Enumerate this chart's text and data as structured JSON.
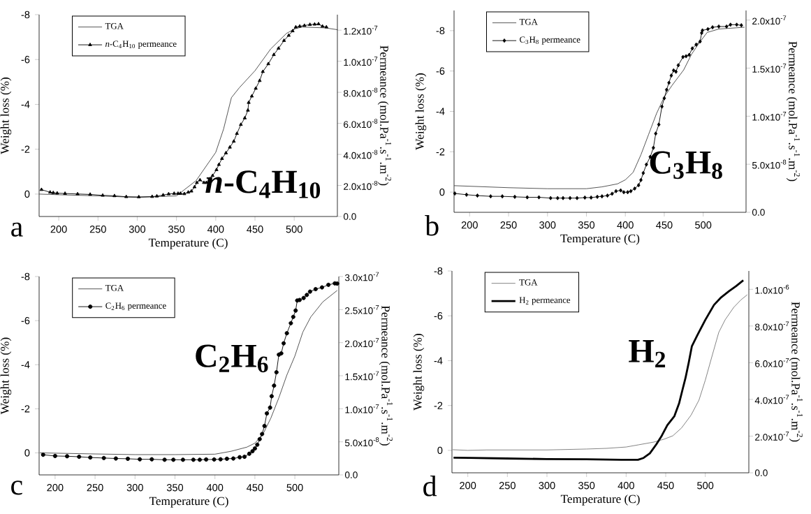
{
  "chart_data": [
    {
      "type": "line",
      "xlabel": "Temperature (C)",
      "ylabel": "Weight loss (%)",
      "y2label": "Permeance (mol.Pa$^{-1}$.s$^{-1}$.m$^{-2}$)",
      "legend": "top left",
      "annotations": [
        "a",
        "*n*-C$_{4}$H$_{10}$"
      ],
      "xlim": [
        175,
        555
      ],
      "xticks": [
        200,
        250,
        300,
        350,
        400,
        450,
        500
      ],
      "ylim": [
        1,
        -8
      ],
      "yticks": [
        0,
        -2,
        -4,
        -6,
        -8
      ],
      "y2lim": [
        0,
        1.3e-07
      ],
      "y2ticks": [
        {
          "value": 0,
          "label": "0.0"
        },
        {
          "value": 2e-08,
          "label": "2.0x10$^{-8}$"
        },
        {
          "value": 4e-08,
          "label": "4.0x10$^{-8}$"
        },
        {
          "value": 6e-08,
          "label": "6.0x10$^{-8}$"
        },
        {
          "value": 8e-08,
          "label": "8.0x10$^{-8}$"
        },
        {
          "value": 1e-07,
          "label": "1.0x10$^{-7}$"
        },
        {
          "value": 1.2e-07,
          "label": "1.2x10$^{-7}$"
        }
      ],
      "series": [
        {
          "name": "TGA",
          "color": "#444444",
          "marker": "none",
          "x": [
            175,
            200,
            250,
            300,
            350,
            375,
            400,
            410,
            420,
            430,
            450,
            470,
            490,
            500,
            510,
            540,
            555
          ],
          "values": [
            0,
            0.03,
            0.08,
            0.15,
            0.08,
            -0.6,
            -1.86,
            -2.9,
            -4.3,
            -4.74,
            -5.5,
            -6.47,
            -7.16,
            -7.36,
            -7.45,
            -7.41,
            -7.33
          ]
        },
        {
          "name": "*n*-C$_{4}$H$_{10}$ permeance",
          "color": "#000000",
          "marker": "triangle",
          "axis": "y2",
          "x": [
            178,
            189,
            193,
            198,
            208,
            224,
            240,
            256,
            271,
            286,
            302,
            319,
            325,
            333,
            340,
            347,
            352,
            355,
            360,
            365,
            369,
            373,
            376,
            380,
            385,
            388,
            393,
            396,
            401,
            404,
            408,
            413,
            418,
            423,
            427,
            432,
            437,
            441,
            442,
            446,
            451,
            456,
            460,
            467,
            474,
            480,
            487,
            493,
            498,
            502,
            507,
            513,
            520,
            526,
            531,
            536,
            541
          ],
          "values": [
            1.73e-08,
            1.56e-08,
            1.53e-08,
            1.5e-08,
            1.48e-08,
            1.45e-08,
            1.42e-08,
            1.36e-08,
            1.33e-08,
            1.27e-08,
            1.26e-08,
            1.28e-08,
            1.31e-08,
            1.38e-08,
            1.45e-08,
            1.48e-08,
            1.48e-08,
            1.48e-08,
            1.46e-08,
            1.56e-08,
            1.63e-08,
            1.9e-08,
            2.18e-08,
            2.35e-08,
            2.18e-08,
            2.18e-08,
            2.43e-08,
            2.63e-08,
            3.01e-08,
            3.34e-08,
            3.73e-08,
            4.09e-08,
            4.46e-08,
            4.84e-08,
            5.34e-08,
            5.92e-08,
            6.34e-08,
            6.84e-08,
            7.34e-08,
            7.75e-08,
            8.25e-08,
            8.75e-08,
            9.33e-08,
            9.83e-08,
            1.042e-07,
            1.083e-07,
            1.133e-07,
            1.166e-07,
            1.195e-07,
            1.22e-07,
            1.225e-07,
            1.23e-07,
            1.236e-07,
            1.238e-07,
            1.24e-07,
            1.225e-07,
            1.22e-07
          ]
        }
      ]
    },
    {
      "type": "line",
      "xlabel": "Temperature (C)",
      "ylabel": "Weight loss (%)",
      "y2label": "Permeance (mol.Pa$^{-1}$.s$^{-1}$.m$^{-2}$)",
      "legend": "top left",
      "annotations": [
        "b",
        "C$_{3}$H$_{8}$"
      ],
      "xlim": [
        180,
        555
      ],
      "xticks": [
        200,
        250,
        300,
        350,
        400,
        450,
        500
      ],
      "ylim": [
        1,
        -9
      ],
      "yticks": [
        0,
        -2,
        -4,
        -6,
        -8
      ],
      "y2lim": [
        0,
        2.1e-07
      ],
      "y2ticks": [
        {
          "value": 0,
          "label": "0.0"
        },
        {
          "value": 5e-08,
          "label": "5.0x10$^{-8}$"
        },
        {
          "value": 1e-07,
          "label": "1.0x10$^{-7}$"
        },
        {
          "value": 1.5e-07,
          "label": "1.5x10$^{-7}$"
        },
        {
          "value": 2e-07,
          "label": "2.0x10$^{-7}$"
        }
      ],
      "series": [
        {
          "name": "TGA",
          "color": "#444444",
          "marker": "none",
          "x": [
            180,
            250,
            300,
            350,
            370,
            390,
            400,
            410,
            420,
            430,
            440,
            450,
            460,
            475,
            485,
            495,
            505,
            520,
            553
          ],
          "values": [
            -0.32,
            -0.22,
            -0.17,
            -0.17,
            -0.26,
            -0.41,
            -0.61,
            -0.98,
            -1.85,
            -2.87,
            -3.89,
            -4.72,
            -5.29,
            -6.06,
            -6.83,
            -7.4,
            -7.91,
            -8.08,
            -8.17
          ]
        },
        {
          "name": "C$_{3}$H$_{8}$ permeance",
          "color": "#000000",
          "marker": "diamond",
          "axis": "y2",
          "x": [
            181,
            196,
            210,
            227,
            242,
            258,
            274,
            289,
            304,
            313,
            320,
            329,
            338,
            348,
            356,
            364,
            370,
            377,
            383,
            388,
            394,
            398,
            403,
            407,
            412,
            417,
            420,
            423,
            427,
            432,
            436,
            439,
            443,
            447,
            450,
            453,
            456,
            459,
            462,
            465,
            468,
            474,
            478,
            482,
            486,
            491,
            496,
            498,
            499,
            506,
            512,
            520,
            530,
            535,
            543,
            549
          ],
          "values": [
            1.96e-08,
            1.83e-08,
            1.74e-08,
            1.66e-08,
            1.66e-08,
            1.61e-08,
            1.56e-08,
            1.56e-08,
            1.48e-08,
            1.48e-08,
            1.48e-08,
            1.48e-08,
            1.48e-08,
            1.53e-08,
            1.53e-08,
            1.61e-08,
            1.66e-08,
            1.74e-08,
            1.93e-08,
            2.2e-08,
            2.28e-08,
            2.09e-08,
            2.09e-08,
            2.2e-08,
            2.47e-08,
            2.82e-08,
            3.36e-08,
            4.08e-08,
            4.97e-08,
            5.77e-08,
            6.71e-08,
            8.19e-08,
            9.13e-08,
            1.1e-07,
            1.187e-07,
            1.275e-07,
            1.348e-07,
            1.423e-07,
            1.477e-07,
            1.463e-07,
            1.53e-07,
            1.616e-07,
            1.624e-07,
            1.638e-07,
            1.705e-07,
            1.745e-07,
            1.777e-07,
            1.866e-07,
            1.893e-07,
            1.906e-07,
            1.925e-07,
            1.933e-07,
            1.933e-07,
            1.952e-07,
            1.952e-07,
            1.946e-07
          ]
        }
      ]
    },
    {
      "type": "line",
      "xlabel": "Temperature (C)",
      "ylabel": "Weight loss (%)",
      "y2label": "Permeance (mol.Pa$^{-1}$.s$^{-1}$.m$^{-2}$)",
      "legend": "top left",
      "annotations": [
        "c",
        "C$_{2}$H$_{6}$"
      ],
      "xlim": [
        180,
        555
      ],
      "xticks": [
        200,
        250,
        300,
        350,
        400,
        450,
        500
      ],
      "ylim": [
        1,
        -8
      ],
      "yticks": [
        0,
        -2,
        -4,
        -6,
        -8
      ],
      "y2lim": [
        0,
        3e-07
      ],
      "y2ticks": [
        {
          "value": 0,
          "label": "0.0"
        },
        {
          "value": 5e-08,
          "label": "5.0x10$^{-8}$"
        },
        {
          "value": 1e-07,
          "label": "1.0x10$^{-7}$"
        },
        {
          "value": 1.5e-07,
          "label": "1.5x10$^{-7}$"
        },
        {
          "value": 2e-07,
          "label": "2.0x10$^{-7}$"
        },
        {
          "value": 2.5e-07,
          "label": "2.5x10$^{-7}$"
        },
        {
          "value": 3e-07,
          "label": "3.0x10$^{-7}$"
        }
      ],
      "series": [
        {
          "name": "TGA",
          "color": "#444444",
          "marker": "none",
          "x": [
            181,
            250,
            300,
            350,
            400,
            420,
            440,
            450,
            460,
            470,
            480,
            490,
            500,
            510,
            520,
            535,
            553
          ],
          "values": [
            0,
            0.05,
            0.08,
            0.08,
            0.06,
            -0.07,
            -0.26,
            -0.44,
            -0.84,
            -1.58,
            -2.5,
            -3.53,
            -4.39,
            -5.48,
            -6.17,
            -6.85,
            -7.37
          ]
        },
        {
          "name": "C$_{2}$H$_{6}$ permeance",
          "color": "#000000",
          "marker": "circle",
          "axis": "y2",
          "x": [
            185,
            200,
            215,
            230,
            244,
            261,
            276,
            291,
            306,
            321,
            337,
            348,
            360,
            373,
            381,
            389,
            399,
            407,
            415,
            423,
            431,
            437,
            443,
            447,
            450,
            453,
            456,
            459,
            462,
            465,
            469,
            471,
            474,
            477,
            480,
            483,
            486,
            490,
            495,
            498,
            501,
            503,
            506,
            511,
            515,
            519,
            526,
            534,
            542,
            550,
            553
          ],
          "values": [
            3.05e-08,
            2.86e-08,
            2.82e-08,
            2.74e-08,
            2.63e-08,
            2.55e-08,
            2.48e-08,
            2.44e-08,
            2.36e-08,
            2.36e-08,
            2.29e-08,
            2.29e-08,
            2.29e-08,
            2.29e-08,
            2.29e-08,
            2.33e-08,
            2.33e-08,
            2.36e-08,
            2.44e-08,
            2.48e-08,
            2.67e-08,
            2.74e-08,
            3.2e-08,
            3.58e-08,
            4e-08,
            4.57e-08,
            5.41e-08,
            6.18e-08,
            7.4e-08,
            9.3e-08,
            1.018e-07,
            1.19e-07,
            1.35e-07,
            1.552e-07,
            1.819e-07,
            1.838e-07,
            1.99e-07,
            2.143e-07,
            2.295e-07,
            2.39e-07,
            2.486e-07,
            2.638e-07,
            2.646e-07,
            2.676e-07,
            2.722e-07,
            2.772e-07,
            2.81e-07,
            2.836e-07,
            2.875e-07,
            2.897e-07,
            2.894e-07
          ]
        }
      ]
    },
    {
      "type": "line",
      "xlabel": "Temperature (C)",
      "ylabel": "Weight loss (%)",
      "y2label": "Permeance (mol.Pa$^{-1}$.s$^{-1}$.m$^{-2}$)",
      "legend": "top left",
      "annotations": [
        "d",
        "H$_{2}$"
      ],
      "xlim": [
        180,
        555
      ],
      "xticks": [
        200,
        250,
        300,
        350,
        400,
        450,
        500
      ],
      "ylim": [
        1,
        -8
      ],
      "yticks": [
        0,
        -2,
        -4,
        -6,
        -8
      ],
      "y2lim": [
        0,
        1.1e-06
      ],
      "y2ticks": [
        {
          "value": 0,
          "label": "0.0"
        },
        {
          "value": 2e-07,
          "label": "2.0x10$^{-7}$"
        },
        {
          "value": 4e-07,
          "label": "4.0x10$^{-7}$"
        },
        {
          "value": 6e-07,
          "label": "6.0x10$^{-7}$"
        },
        {
          "value": 8e-07,
          "label": "8.0x10$^{-7}$"
        },
        {
          "value": 1e-06,
          "label": "1.0x10$^{-6}$"
        }
      ],
      "series": [
        {
          "name": "TGA",
          "color": "#777777",
          "marker": "none",
          "x": [
            181,
            200,
            224,
            249,
            300,
            350,
            375,
            400,
            416,
            435,
            448,
            459,
            470,
            482,
            492,
            500,
            508,
            517,
            525,
            536,
            545,
            553
          ],
          "values": [
            -0.03,
            0,
            -0.02,
            -0.02,
            -0.02,
            -0.06,
            -0.09,
            -0.15,
            -0.25,
            -0.37,
            -0.5,
            -0.65,
            -1.0,
            -1.57,
            -2.24,
            -3.13,
            -4.14,
            -5.26,
            -5.82,
            -6.38,
            -6.71,
            -6.94
          ]
        },
        {
          "name": "H$_{2}$ permeance",
          "color": "#000000",
          "marker": "none",
          "axis": "y2",
          "x": [
            182,
            202,
            249,
            300,
            350,
            394,
            415,
            422,
            430,
            438,
            445,
            452,
            461,
            467,
            471,
            475,
            479,
            483,
            490,
            500,
            511,
            520,
            530,
            539,
            548
          ],
          "values": [
            8.2e-08,
            8.1e-08,
            7.8e-08,
            7.5e-08,
            7.4e-08,
            7.1e-08,
            7.1e-08,
            8.1e-08,
            1.06e-07,
            1.54e-07,
            2.02e-07,
            2.59e-07,
            3.09e-07,
            3.8e-07,
            4.49e-07,
            5.17e-07,
            5.99e-07,
            6.89e-07,
            7.5e-07,
            8.33e-07,
            9.15e-07,
            9.56e-07,
            9.9e-07,
            1.018e-06,
            1.049e-06
          ]
        }
      ]
    }
  ]
}
